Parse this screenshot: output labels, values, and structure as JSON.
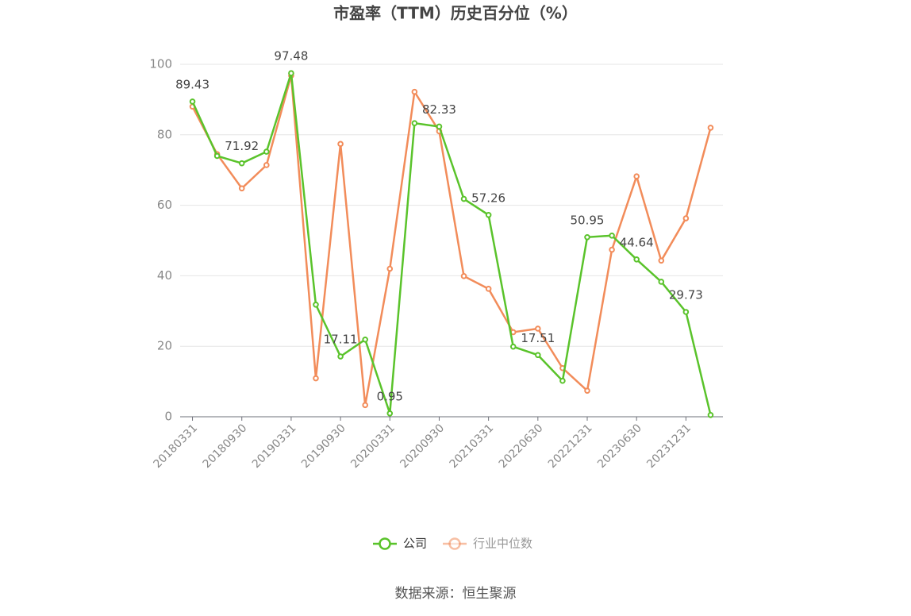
{
  "chart_data": {
    "type": "line",
    "title": "市盈率（TTM）历史百分位（%）",
    "source": "数据来源：恒生聚源",
    "categories": [
      "20180331",
      null,
      "20180930",
      null,
      "20190331",
      null,
      "20190930",
      null,
      "20200331",
      null,
      "20200930",
      null,
      "20210331",
      null,
      "20220630",
      null,
      "20221231",
      null,
      "20230630",
      null,
      "20231231",
      null
    ],
    "series": [
      {
        "name": "公司",
        "color": "#5ac32b",
        "values": [
          89.43,
          74,
          71.92,
          75.2,
          97.48,
          31.8,
          17.11,
          21.9,
          0.95,
          83.3,
          82.33,
          61.8,
          57.26,
          19.9,
          17.51,
          10.2,
          50.95,
          51.4,
          44.64,
          38.3,
          29.73,
          0.5
        ],
        "value_labels": [
          "89.43",
          null,
          "71.92",
          null,
          "97.48",
          null,
          "17.11",
          null,
          "0.95",
          null,
          "82.33",
          null,
          "57.26",
          null,
          "17.51",
          null,
          "50.95",
          null,
          "44.64",
          null,
          "29.73",
          null
        ]
      },
      {
        "name": "行业中位数",
        "color": "#f28c5a",
        "values": [
          88,
          74.5,
          64.8,
          71.4,
          96.8,
          10.9,
          77.4,
          3.3,
          42,
          92.2,
          81,
          39.9,
          36.3,
          24,
          25,
          13.8,
          7.4,
          47.4,
          68.2,
          44.3,
          56.3,
          82
        ]
      }
    ],
    "ylim": [
      0,
      100
    ],
    "yticks": [
      0,
      20,
      40,
      60,
      80,
      100
    ],
    "grid": true
  }
}
